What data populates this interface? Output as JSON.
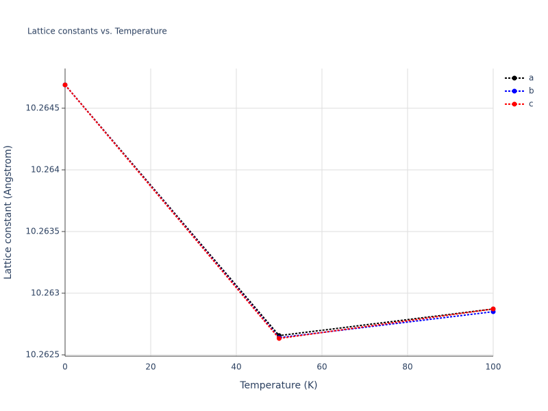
{
  "chart_data": {
    "type": "line",
    "title": "Lattice constants vs. Temperature",
    "x_label": "Temperature (K)",
    "y_label": "Lattice constant (Angstrom)",
    "x": [
      0,
      50,
      100
    ],
    "series": [
      {
        "name": "a",
        "color": "#000000",
        "values": [
          10.264689,
          10.262656,
          10.262872
        ]
      },
      {
        "name": "b",
        "color": "#0000ff",
        "values": [
          10.264689,
          10.262639,
          10.26285
        ]
      },
      {
        "name": "c",
        "color": "#ff0000",
        "values": [
          10.264689,
          10.262633,
          10.262872
        ]
      }
    ],
    "xlim": [
      0,
      100
    ],
    "xticks": [
      0,
      20,
      40,
      60,
      80,
      100
    ],
    "ylim": [
      10.262489,
      10.264822
    ],
    "yticks": [
      10.2625,
      10.263,
      10.2635,
      10.264,
      10.2645
    ],
    "grid": true,
    "legend": "right"
  }
}
